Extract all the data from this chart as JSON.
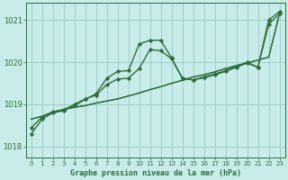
{
  "background_color": "#c8ece9",
  "grid_color": "#9ececa",
  "line_color": "#2d6e3a",
  "xlabel": "Graphe pression niveau de la mer (hPa)",
  "xlim": [
    -0.5,
    23.5
  ],
  "ylim": [
    1017.75,
    1021.4
  ],
  "yticks": [
    1018,
    1019,
    1020,
    1021
  ],
  "xticks": [
    0,
    1,
    2,
    3,
    4,
    5,
    6,
    7,
    8,
    9,
    10,
    11,
    12,
    13,
    14,
    15,
    16,
    17,
    18,
    19,
    20,
    21,
    22,
    23
  ],
  "series": [
    {
      "y": [
        1018.65,
        1018.72,
        1018.82,
        1018.88,
        1018.93,
        1018.97,
        1019.03,
        1019.08,
        1019.13,
        1019.2,
        1019.27,
        1019.35,
        1019.42,
        1019.5,
        1019.57,
        1019.65,
        1019.7,
        1019.77,
        1019.85,
        1019.92,
        1019.98,
        1020.05,
        1020.12,
        1021.15
      ],
      "marker": null,
      "lw": 1.0
    },
    {
      "y": [
        1018.65,
        1018.72,
        1018.82,
        1018.88,
        1018.93,
        1018.97,
        1019.03,
        1019.08,
        1019.13,
        1019.2,
        1019.27,
        1019.35,
        1019.42,
        1019.5,
        1019.57,
        1019.65,
        1019.7,
        1019.77,
        1019.85,
        1019.92,
        1019.98,
        1020.05,
        1020.12,
        1021.15
      ],
      "marker": null,
      "lw": 0.8
    },
    {
      "y": [
        1018.45,
        1018.7,
        1018.82,
        1018.87,
        1019.0,
        1019.13,
        1019.22,
        1019.47,
        1019.6,
        1019.62,
        1019.85,
        1020.3,
        1020.27,
        1020.08,
        1019.62,
        1019.58,
        1019.63,
        1019.7,
        1019.78,
        1019.88,
        1019.98,
        1019.88,
        1020.9,
        1021.15
      ],
      "marker": "D",
      "lw": 1.0
    },
    {
      "y": [
        1018.3,
        1018.65,
        1018.8,
        1018.85,
        1018.97,
        1019.12,
        1019.25,
        1019.62,
        1019.78,
        1019.8,
        1020.43,
        1020.52,
        1020.52,
        1020.1,
        1019.62,
        1019.58,
        1019.65,
        1019.72,
        1019.8,
        1019.9,
        1020.0,
        1019.88,
        1021.0,
        1021.2
      ],
      "marker": "D",
      "lw": 1.0
    }
  ]
}
